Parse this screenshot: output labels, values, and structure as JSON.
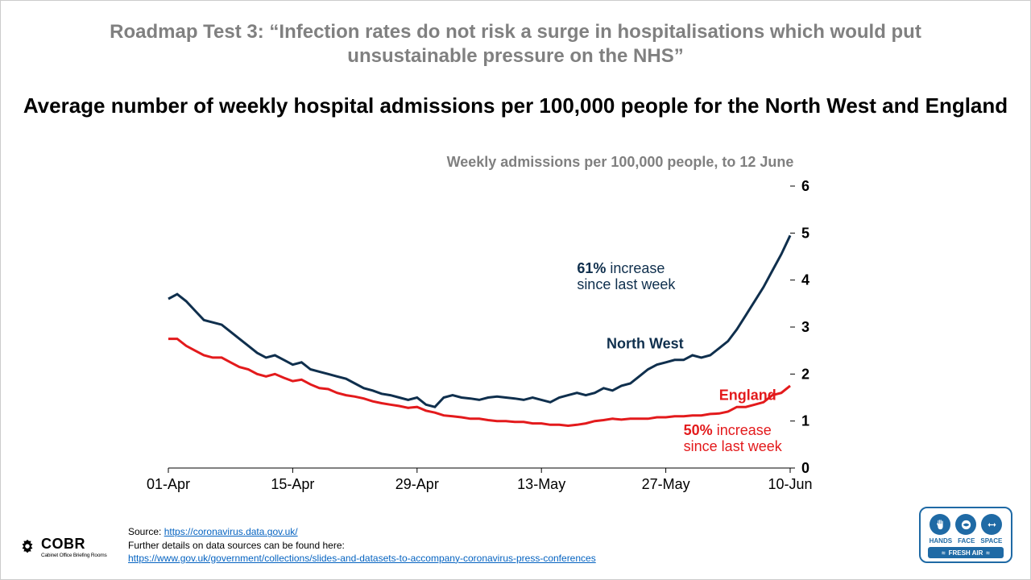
{
  "supertitle": "Roadmap Test 3: “Infection rates do not risk a surge in hospitalisations which would put unsustainable pressure on the NHS”",
  "title": "Average number of weekly hospital admissions per 100,000 people for the North West and England",
  "subtitle": "Weekly admissions per 100,000 people, to 12 June",
  "chart": {
    "type": "line",
    "background_color": "#ffffff",
    "ylim": [
      0,
      6
    ],
    "ytick_step": 1,
    "yticks": [
      0,
      1,
      2,
      3,
      4,
      5,
      6
    ],
    "x_range_days": [
      0,
      70
    ],
    "x_ticks": [
      {
        "day": 0,
        "label": "01-Apr"
      },
      {
        "day": 14,
        "label": "15-Apr"
      },
      {
        "day": 28,
        "label": "29-Apr"
      },
      {
        "day": 42,
        "label": "13-May"
      },
      {
        "day": 56,
        "label": "27-May"
      },
      {
        "day": 70,
        "label": "10-Jun"
      }
    ],
    "axis_color": "#000000",
    "axis_fontsize": 18,
    "line_width": 3,
    "series": {
      "north_west": {
        "label": "North West",
        "color": "#0f2f4d",
        "values": [
          3.6,
          3.7,
          3.55,
          3.35,
          3.15,
          3.1,
          3.05,
          2.9,
          2.75,
          2.6,
          2.45,
          2.35,
          2.4,
          2.3,
          2.2,
          2.25,
          2.1,
          2.05,
          2.0,
          1.95,
          1.9,
          1.8,
          1.7,
          1.65,
          1.58,
          1.55,
          1.5,
          1.45,
          1.5,
          1.35,
          1.3,
          1.5,
          1.55,
          1.5,
          1.48,
          1.45,
          1.5,
          1.52,
          1.5,
          1.48,
          1.45,
          1.5,
          1.45,
          1.4,
          1.5,
          1.55,
          1.6,
          1.55,
          1.6,
          1.7,
          1.65,
          1.75,
          1.8,
          1.95,
          2.1,
          2.2,
          2.25,
          2.3,
          2.3,
          2.4,
          2.35,
          2.4,
          2.55,
          2.7,
          2.95,
          3.25,
          3.55,
          3.85,
          4.2,
          4.55,
          4.95
        ],
        "annotation": {
          "bold": "61%",
          "text": " increase since last week"
        }
      },
      "england": {
        "label": "England",
        "color": "#e31a1c",
        "values": [
          2.75,
          2.75,
          2.6,
          2.5,
          2.4,
          2.35,
          2.35,
          2.25,
          2.15,
          2.1,
          2.0,
          1.95,
          2.0,
          1.92,
          1.85,
          1.88,
          1.78,
          1.7,
          1.68,
          1.6,
          1.55,
          1.52,
          1.48,
          1.42,
          1.38,
          1.35,
          1.32,
          1.28,
          1.3,
          1.22,
          1.18,
          1.12,
          1.1,
          1.08,
          1.05,
          1.05,
          1.02,
          1.0,
          1.0,
          0.98,
          0.98,
          0.95,
          0.95,
          0.92,
          0.92,
          0.9,
          0.92,
          0.95,
          1.0,
          1.02,
          1.05,
          1.03,
          1.05,
          1.05,
          1.05,
          1.08,
          1.08,
          1.1,
          1.1,
          1.12,
          1.12,
          1.15,
          1.16,
          1.2,
          1.3,
          1.3,
          1.35,
          1.4,
          1.55,
          1.6,
          1.75
        ],
        "annotation": {
          "bold": "50%",
          "text": " increase since last week"
        }
      }
    }
  },
  "footer": {
    "source_label": "Source: ",
    "source_url_text": "https://coronavirus.data.gov.uk/",
    "details_label": "Further details on data sources can be found here:",
    "details_url_text": "https://www.gov.uk/government/collections/slides-and-datasets-to-accompany-coronavirus-press-conferences"
  },
  "cobr": {
    "main": "COBR",
    "sub": "Cabinet Office Briefing Rooms"
  },
  "badge": {
    "border_color": "#1f6aa5",
    "icon_bg": "#1f6aa5",
    "labels": [
      "HANDS",
      "FACE",
      "SPACE"
    ],
    "strip": "FRESH AIR"
  }
}
